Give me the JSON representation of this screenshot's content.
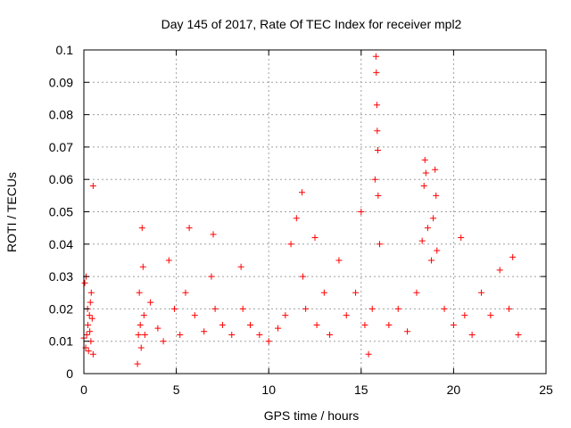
{
  "chart_data": {
    "type": "scatter",
    "title": "Day 145 of 2017, Rate Of TEC Index for receiver mpl2",
    "xlabel": "GPS time / hours",
    "ylabel": "ROTI / TECUs",
    "xlim": [
      0,
      25
    ],
    "ylim": [
      0,
      0.1
    ],
    "x_ticks": [
      0,
      5,
      10,
      15,
      20,
      25
    ],
    "y_ticks": [
      0,
      0.01,
      0.02,
      0.03,
      0.04,
      0.05,
      0.06,
      0.07,
      0.08,
      0.09,
      0.1
    ],
    "grid": true,
    "marker": "plus",
    "colors": {
      "points": "#ff0000",
      "grid": "#a0a0a0",
      "axis": "#000000"
    },
    "series": [
      {
        "name": "ROTI",
        "x": [
          0.0,
          0.05,
          0.1,
          0.12,
          0.15,
          0.2,
          0.22,
          0.25,
          0.3,
          0.32,
          0.35,
          0.38,
          0.4,
          0.45,
          0.5,
          0.5,
          2.9,
          2.95,
          3.0,
          3.05,
          3.1,
          3.15,
          3.2,
          3.25,
          3.3,
          3.6,
          4.0,
          4.3,
          4.6,
          4.9,
          5.2,
          5.5,
          5.7,
          6.0,
          6.5,
          6.9,
          7.0,
          7.1,
          7.5,
          8.0,
          8.5,
          8.6,
          9.0,
          9.5,
          10.0,
          10.5,
          10.9,
          11.2,
          11.5,
          11.8,
          11.85,
          12.0,
          12.5,
          12.6,
          13.0,
          13.3,
          13.8,
          14.2,
          14.7,
          15.0,
          15.2,
          15.4,
          15.6,
          15.75,
          15.8,
          15.82,
          15.85,
          15.87,
          15.9,
          15.92,
          16.0,
          16.5,
          17.0,
          17.5,
          18.0,
          18.3,
          18.4,
          18.45,
          18.5,
          18.6,
          18.8,
          18.9,
          19.0,
          19.05,
          19.1,
          19.5,
          20.0,
          20.4,
          20.6,
          21.0,
          21.5,
          22.0,
          22.5,
          23.0,
          23.2,
          23.5
        ],
        "y": [
          0.011,
          0.028,
          0.008,
          0.03,
          0.012,
          0.02,
          0.015,
          0.007,
          0.018,
          0.013,
          0.022,
          0.01,
          0.025,
          0.017,
          0.058,
          0.006,
          0.003,
          0.012,
          0.025,
          0.015,
          0.008,
          0.045,
          0.033,
          0.018,
          0.012,
          0.022,
          0.014,
          0.01,
          0.035,
          0.02,
          0.012,
          0.025,
          0.045,
          0.018,
          0.013,
          0.03,
          0.043,
          0.02,
          0.015,
          0.012,
          0.033,
          0.02,
          0.015,
          0.012,
          0.01,
          0.014,
          0.018,
          0.04,
          0.048,
          0.056,
          0.03,
          0.02,
          0.042,
          0.015,
          0.025,
          0.012,
          0.035,
          0.018,
          0.025,
          0.05,
          0.015,
          0.006,
          0.02,
          0.06,
          0.098,
          0.093,
          0.083,
          0.075,
          0.069,
          0.055,
          0.04,
          0.015,
          0.02,
          0.013,
          0.025,
          0.041,
          0.058,
          0.066,
          0.062,
          0.045,
          0.035,
          0.048,
          0.063,
          0.055,
          0.038,
          0.02,
          0.015,
          0.042,
          0.018,
          0.012,
          0.025,
          0.018,
          0.032,
          0.02,
          0.036,
          0.012
        ]
      }
    ]
  }
}
